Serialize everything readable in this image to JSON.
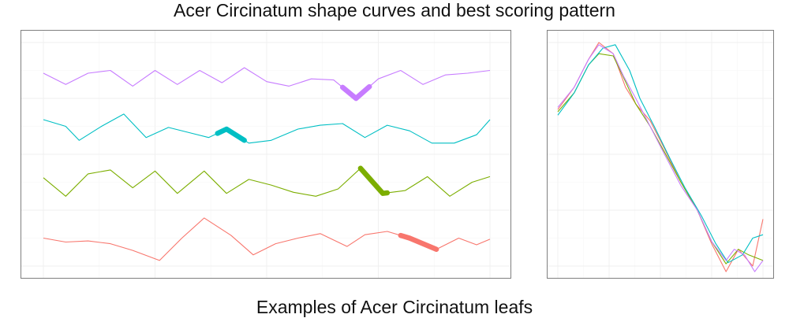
{
  "title": "Acer Circinatum shape curves and best scoring pattern",
  "caption": "Examples of Acer Circinatum leafs",
  "chart_data": [
    {
      "type": "line",
      "title": "Acer Circinatum shape curves and best scoring pattern",
      "xlabel": "",
      "ylabel": "",
      "xlim": [
        0,
        1
      ],
      "ylim": [
        0,
        4
      ],
      "grid": true,
      "legend": "none",
      "layout": "stacked",
      "series": [
        {
          "color": "#F8766D",
          "offset": 0.5,
          "x": [
            0,
            0.05,
            0.1,
            0.15,
            0.2,
            0.26,
            0.31,
            0.36,
            0.42,
            0.47,
            0.52,
            0.57,
            0.62,
            0.68,
            0.72,
            0.77,
            0.82,
            0.88,
            0.93,
            0.97,
            1.0
          ],
          "y": [
            0.5,
            0.43,
            0.45,
            0.4,
            0.28,
            0.1,
            0.5,
            0.86,
            0.55,
            0.2,
            0.4,
            0.5,
            0.58,
            0.35,
            0.56,
            0.62,
            0.5,
            0.3,
            0.5,
            0.38,
            0.48
          ],
          "highlight": [
            0.8,
            0.88
          ]
        },
        {
          "color": "#7CAE00",
          "offset": 1.5,
          "x": [
            0,
            0.05,
            0.1,
            0.15,
            0.2,
            0.25,
            0.3,
            0.36,
            0.41,
            0.46,
            0.51,
            0.56,
            0.61,
            0.66,
            0.71,
            0.76,
            0.81,
            0.86,
            0.91,
            0.96,
            1.0
          ],
          "y": [
            0.58,
            0.25,
            0.65,
            0.72,
            0.4,
            0.7,
            0.3,
            0.7,
            0.3,
            0.55,
            0.45,
            0.32,
            0.25,
            0.38,
            0.75,
            0.3,
            0.35,
            0.6,
            0.25,
            0.5,
            0.6
          ],
          "highlight": [
            0.71,
            0.77
          ]
        },
        {
          "color": "#00BFC4",
          "offset": 2.5,
          "x": [
            0,
            0.05,
            0.08,
            0.13,
            0.18,
            0.23,
            0.28,
            0.33,
            0.37,
            0.41,
            0.46,
            0.51,
            0.57,
            0.62,
            0.67,
            0.72,
            0.77,
            0.82,
            0.87,
            0.92,
            0.97,
            1.0
          ],
          "y": [
            0.62,
            0.5,
            0.25,
            0.5,
            0.72,
            0.3,
            0.48,
            0.38,
            0.3,
            0.45,
            0.2,
            0.25,
            0.45,
            0.52,
            0.55,
            0.3,
            0.52,
            0.42,
            0.2,
            0.2,
            0.35,
            0.62
          ],
          "highlight": [
            0.39,
            0.45
          ]
        },
        {
          "color": "#C77CFF",
          "offset": 3.5,
          "x": [
            0,
            0.05,
            0.1,
            0.15,
            0.2,
            0.25,
            0.3,
            0.35,
            0.4,
            0.45,
            0.5,
            0.55,
            0.6,
            0.65,
            0.7,
            0.75,
            0.8,
            0.85,
            0.9,
            0.95,
            1.0
          ],
          "y": [
            0.45,
            0.25,
            0.45,
            0.5,
            0.22,
            0.5,
            0.25,
            0.5,
            0.28,
            0.55,
            0.3,
            0.22,
            0.35,
            0.33,
            0.0,
            0.35,
            0.5,
            0.25,
            0.42,
            0.45,
            0.5
          ],
          "highlight": [
            0.67,
            0.73
          ]
        }
      ]
    },
    {
      "type": "line",
      "title": "",
      "xlabel": "",
      "ylabel": "",
      "xlim": [
        0,
        1
      ],
      "ylim": [
        -1,
        1
      ],
      "grid": true,
      "legend": "none",
      "series": [
        {
          "color": "#F8766D",
          "x": [
            0,
            0.08,
            0.15,
            0.2,
            0.27,
            0.33,
            0.38,
            0.45,
            0.52,
            0.6,
            0.68,
            0.75,
            0.82,
            0.88,
            0.95,
            1.0
          ],
          "y": [
            0.4,
            0.6,
            0.85,
            1.0,
            0.9,
            0.6,
            0.45,
            0.3,
            0.05,
            -0.25,
            -0.5,
            -0.8,
            -1.05,
            -0.85,
            -1.0,
            -0.58
          ]
        },
        {
          "color": "#7CAE00",
          "x": [
            0,
            0.08,
            0.15,
            0.2,
            0.27,
            0.33,
            0.38,
            0.45,
            0.52,
            0.6,
            0.68,
            0.75,
            0.82,
            0.88,
            0.93,
            1.0
          ],
          "y": [
            0.38,
            0.55,
            0.8,
            0.9,
            0.88,
            0.65,
            0.45,
            0.25,
            0.02,
            -0.25,
            -0.5,
            -0.78,
            -0.98,
            -0.85,
            -0.9,
            -0.95
          ]
        },
        {
          "color": "#00BFC4",
          "x": [
            0,
            0.08,
            0.15,
            0.22,
            0.28,
            0.35,
            0.4,
            0.47,
            0.55,
            0.62,
            0.7,
            0.77,
            0.83,
            0.9,
            0.95,
            1.0
          ],
          "y": [
            0.35,
            0.55,
            0.8,
            0.95,
            0.98,
            0.75,
            0.5,
            0.25,
            -0.05,
            -0.3,
            -0.55,
            -0.8,
            -0.97,
            -0.9,
            -0.75,
            -0.72
          ]
        },
        {
          "color": "#C77CFF",
          "x": [
            0,
            0.08,
            0.15,
            0.2,
            0.27,
            0.32,
            0.38,
            0.45,
            0.52,
            0.6,
            0.68,
            0.75,
            0.82,
            0.86,
            0.91,
            0.96,
            1.0
          ],
          "y": [
            0.42,
            0.6,
            0.85,
            0.98,
            0.9,
            0.7,
            0.5,
            0.25,
            0.0,
            -0.28,
            -0.5,
            -0.78,
            -0.95,
            -0.85,
            -0.9,
            -1.05,
            -0.95
          ]
        }
      ]
    }
  ]
}
